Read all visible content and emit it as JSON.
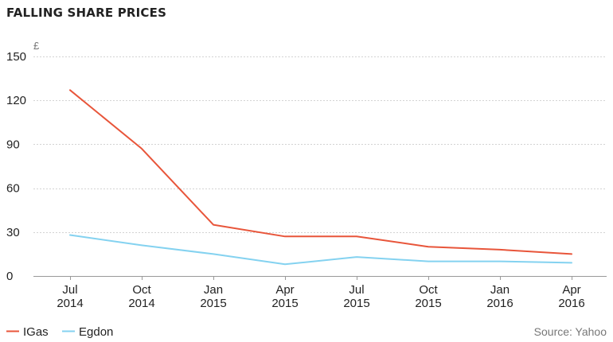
{
  "title": "FALLING SHARE PRICES",
  "source": "Source: Yahoo",
  "chart_data": {
    "type": "line",
    "title": "FALLING SHARE PRICES",
    "y_unit_label": "£",
    "xlabel": "",
    "ylabel": "",
    "ylim": [
      0,
      150
    ],
    "yticks": [
      "0",
      "30",
      "60",
      "90",
      "120",
      "150"
    ],
    "categories": [
      [
        "Jul",
        "2014"
      ],
      [
        "Oct",
        "2014"
      ],
      [
        "Jan",
        "2015"
      ],
      [
        "Apr",
        "2015"
      ],
      [
        "Jul",
        "2015"
      ],
      [
        "Oct",
        "2015"
      ],
      [
        "Jan",
        "2016"
      ],
      [
        "Apr",
        "2016"
      ]
    ],
    "grid": true,
    "legend_position": "bottom-left",
    "series": [
      {
        "name": "IGas",
        "color": "#e8553a",
        "values": [
          127,
          87,
          35,
          27,
          27,
          20,
          18,
          15
        ]
      },
      {
        "name": "Egdon",
        "color": "#84d2f0",
        "values": [
          28,
          21,
          15,
          8,
          13,
          10,
          10,
          9
        ]
      }
    ]
  }
}
